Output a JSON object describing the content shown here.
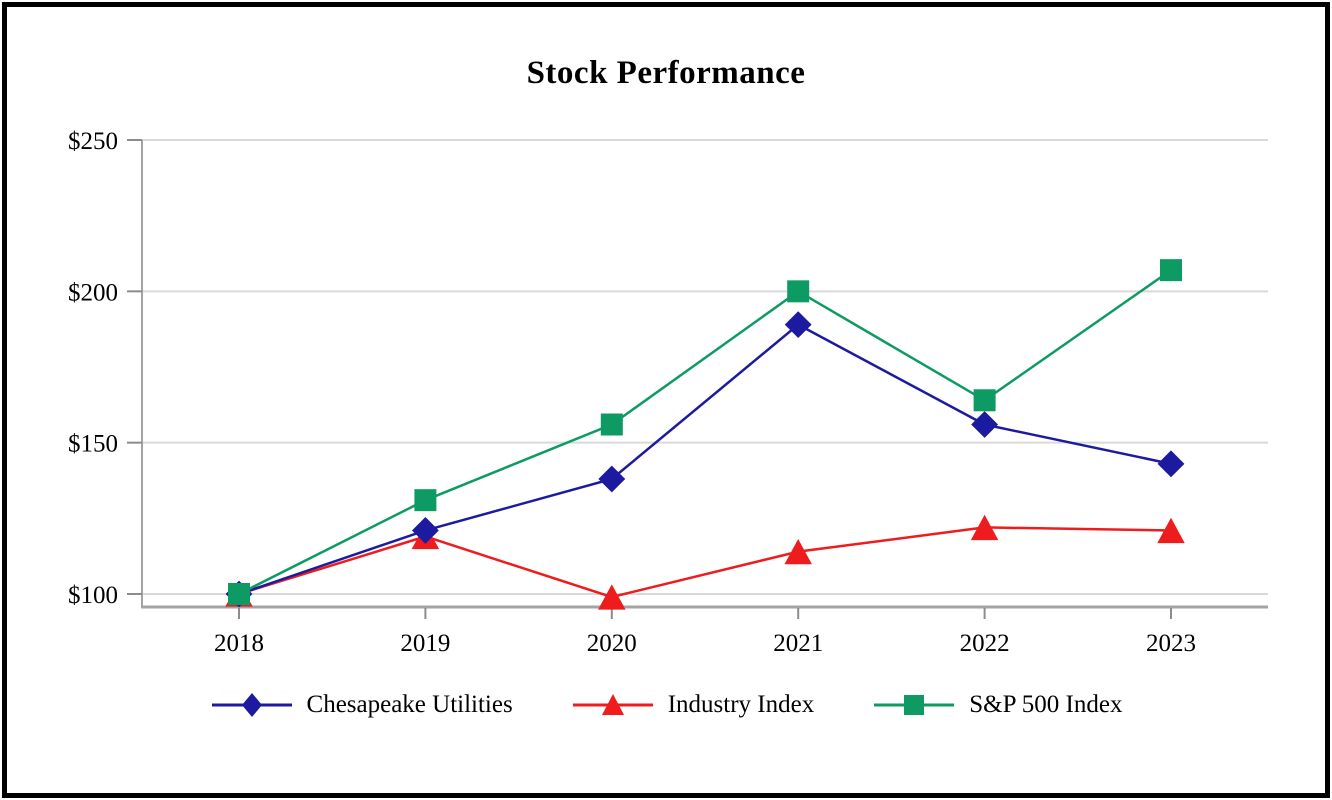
{
  "title": "Stock Performance",
  "chart_data": {
    "type": "line",
    "title": "Stock Performance",
    "x": [
      "2018",
      "2019",
      "2020",
      "2021",
      "2022",
      "2023"
    ],
    "series": [
      {
        "name": "Chesapeake Utilities",
        "marker": "diamond",
        "color": "#1c1ba0",
        "values": [
          100,
          121,
          138,
          189,
          156,
          143
        ]
      },
      {
        "name": "Industry Index",
        "marker": "triangle",
        "color": "#ee1c1c",
        "values": [
          100,
          119,
          99,
          114,
          122,
          121
        ]
      },
      {
        "name": "S&P 500 Index",
        "marker": "square",
        "color": "#0d9b63",
        "values": [
          100,
          131,
          156,
          200,
          164,
          207
        ]
      }
    ],
    "yticks": [
      {
        "value": 100,
        "label": "$100"
      },
      {
        "value": 150,
        "label": "$150"
      },
      {
        "value": 200,
        "label": "$200"
      },
      {
        "value": 250,
        "label": "$250"
      }
    ],
    "ylim": [
      100,
      250
    ],
    "xlabel": "",
    "ylabel": "",
    "grid": true,
    "legend_position": "bottom"
  },
  "colors": {
    "gridline": "#d9d9d9",
    "axis": "#a3a3a3",
    "tick": "#8c8c8c",
    "text": "#000000",
    "background": "#ffffff"
  }
}
